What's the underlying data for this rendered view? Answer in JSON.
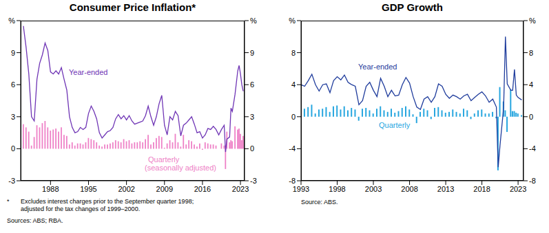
{
  "chart_data": [
    {
      "type": "combo",
      "title": "Consumer Price Inflation*",
      "footnote": {
        "mark": "*",
        "lines": [
          "Excludes interest charges prior to the September quarter 1998;",
          "adjusted for the tax changes of 1999–2000."
        ]
      },
      "source": "Sources: ABS; RBA.",
      "annotations": [
        "(seasonally adjusted)"
      ],
      "xlim": [
        1982.5,
        2023.75
      ],
      "xticks": [
        1988,
        1995,
        2002,
        2009,
        2016,
        2023
      ],
      "ylim": [
        -3,
        12
      ],
      "yticks": [
        -3,
        0,
        3,
        6,
        9,
        {
          "value": 12,
          "label": "%"
        }
      ],
      "grid": false,
      "x": [
        1983.0,
        1983.5,
        1984.0,
        1984.5,
        1985.0,
        1985.5,
        1986.0,
        1986.5,
        1987.0,
        1987.5,
        1988.0,
        1988.5,
        1989.0,
        1989.5,
        1990.0,
        1990.5,
        1991.0,
        1991.5,
        1992.0,
        1992.5,
        1993.0,
        1993.5,
        1994.0,
        1994.5,
        1995.0,
        1995.5,
        1996.0,
        1996.5,
        1997.0,
        1997.5,
        1998.0,
        1998.5,
        1999.0,
        1999.5,
        2000.0,
        2000.5,
        2001.0,
        2001.5,
        2002.0,
        2002.5,
        2003.0,
        2003.5,
        2004.0,
        2004.5,
        2005.0,
        2005.5,
        2006.0,
        2006.5,
        2007.0,
        2007.5,
        2008.0,
        2008.5,
        2009.0,
        2009.5,
        2010.0,
        2010.5,
        2011.0,
        2011.5,
        2012.0,
        2012.5,
        2013.0,
        2013.5,
        2014.0,
        2014.5,
        2015.0,
        2015.5,
        2016.0,
        2016.5,
        2017.0,
        2017.5,
        2018.0,
        2018.5,
        2019.0,
        2019.5,
        2020.0,
        2020.25,
        2020.5,
        2021.0,
        2021.25,
        2021.5,
        2022.0,
        2022.5,
        2022.75,
        2023.0,
        2023.25,
        2023.5
      ],
      "series": [
        {
          "name": "Quarterly",
          "type": "bar",
          "color": "#ee7fc6",
          "values": [
            2.3,
            2.0,
            1.6,
            0.3,
            1.1,
            2.2,
            2.0,
            2.4,
            2.6,
            2.0,
            1.7,
            1.8,
            1.9,
            1.6,
            2.0,
            1.3,
            1.2,
            0.4,
            0.6,
            0.3,
            0.5,
            0.5,
            0.4,
            0.6,
            1.0,
            0.9,
            0.8,
            0.6,
            0.3,
            0.2,
            0.4,
            0.4,
            0.5,
            0.6,
            0.8,
            0.7,
            0.6,
            0.9,
            0.7,
            0.8,
            0.5,
            0.6,
            0.6,
            0.7,
            0.6,
            0.9,
            1.3,
            0.4,
            0.6,
            1.0,
            1.2,
            1.1,
            0.1,
            0.5,
            0.8,
            0.6,
            1.4,
            0.6,
            0.2,
            1.3,
            0.4,
            0.8,
            0.7,
            0.4,
            0.2,
            0.5,
            -0.1,
            0.6,
            0.5,
            0.4,
            0.4,
            0.3,
            0.0,
            0.5,
            0.3,
            -1.9,
            1.6,
            0.6,
            0.8,
            0.7,
            2.1,
            1.8,
            1.9,
            1.4,
            0.8,
            1.2
          ]
        },
        {
          "name": "Year-ended",
          "type": "line",
          "color": "#6f35b5",
          "values": [
            11.5,
            9.5,
            7.0,
            3.0,
            2.6,
            6.5,
            8.0,
            8.8,
            9.9,
            9.2,
            7.2,
            7.0,
            7.3,
            7.0,
            7.6,
            6.5,
            5.5,
            3.0,
            2.0,
            1.5,
            1.6,
            2.0,
            1.8,
            2.0,
            3.3,
            4.0,
            3.5,
            2.8,
            1.5,
            1.0,
            1.3,
            1.6,
            1.7,
            2.0,
            2.8,
            3.2,
            2.8,
            3.1,
            2.7,
            3.1,
            2.6,
            2.3,
            2.4,
            2.5,
            2.6,
            3.1,
            4.0,
            3.0,
            2.2,
            3.0,
            4.2,
            5.0,
            2.2,
            1.3,
            3.0,
            2.7,
            3.5,
            3.1,
            1.2,
            2.2,
            2.4,
            2.7,
            3.0,
            2.3,
            1.5,
            1.6,
            1.0,
            1.3,
            1.9,
            1.8,
            2.1,
            1.8,
            1.3,
            1.8,
            2.2,
            -0.3,
            0.9,
            1.1,
            3.8,
            3.5,
            5.1,
            7.3,
            7.8,
            7.0,
            6.0,
            5.4
          ]
        }
      ]
    },
    {
      "type": "combo",
      "title": "GDP Growth",
      "source": "Source: ABS.",
      "xlim": [
        1993,
        2023.75
      ],
      "xticks": [
        1993,
        1998,
        2003,
        2008,
        2013,
        2018,
        2023
      ],
      "ylim": [
        -8,
        12
      ],
      "yticks": [
        -8,
        -4,
        0,
        4,
        8,
        {
          "value": 12,
          "label": "%"
        }
      ],
      "grid": false,
      "x": [
        1993.0,
        1993.5,
        1994.0,
        1994.5,
        1995.0,
        1995.5,
        1996.0,
        1996.5,
        1997.0,
        1997.5,
        1998.0,
        1998.5,
        1999.0,
        1999.5,
        2000.0,
        2000.5,
        2001.0,
        2001.5,
        2002.0,
        2002.5,
        2003.0,
        2003.5,
        2004.0,
        2004.5,
        2005.0,
        2005.5,
        2006.0,
        2006.5,
        2007.0,
        2007.5,
        2008.0,
        2008.5,
        2009.0,
        2009.5,
        2010.0,
        2010.5,
        2011.0,
        2011.5,
        2012.0,
        2012.5,
        2013.0,
        2013.5,
        2014.0,
        2014.5,
        2015.0,
        2015.5,
        2016.0,
        2016.5,
        2017.0,
        2017.5,
        2018.0,
        2018.5,
        2019.0,
        2019.5,
        2020.0,
        2020.25,
        2020.5,
        2021.0,
        2021.25,
        2021.5,
        2022.0,
        2022.25,
        2022.5,
        2022.75,
        2023.0,
        2023.5
      ],
      "series": [
        {
          "name": "Quarterly",
          "type": "bar",
          "color": "#27a6df",
          "values": [
            0.8,
            1.0,
            1.2,
            1.5,
            0.4,
            0.9,
            1.0,
            1.2,
            0.6,
            1.3,
            1.4,
            0.9,
            1.3,
            0.8,
            1.1,
            0.9,
            -0.5,
            1.0,
            1.1,
            0.8,
            0.4,
            1.0,
            1.3,
            0.8,
            0.6,
            1.0,
            0.5,
            0.7,
            1.1,
            1.3,
            0.9,
            0.3,
            -0.8,
            0.6,
            1.0,
            0.8,
            -0.3,
            1.1,
            1.2,
            0.8,
            0.5,
            0.6,
            0.9,
            0.6,
            0.4,
            1.0,
            0.8,
            -0.3,
            0.4,
            0.8,
            0.9,
            0.4,
            0.4,
            0.6,
            -0.2,
            -6.7,
            3.7,
            1.9,
            0.8,
            -1.9,
            3.4,
            0.7,
            0.7,
            0.5,
            0.4,
            0.2
          ]
        },
        {
          "name": "Year-ended",
          "type": "line",
          "color": "#1f3c9c",
          "values": [
            4.0,
            3.8,
            4.5,
            5.3,
            4.0,
            3.2,
            4.0,
            4.1,
            3.0,
            4.5,
            5.0,
            4.6,
            5.2,
            4.3,
            4.0,
            3.8,
            1.5,
            2.0,
            3.8,
            4.3,
            3.3,
            2.5,
            4.8,
            3.8,
            2.5,
            3.3,
            2.6,
            2.7,
            4.0,
            4.9,
            4.2,
            2.5,
            1.2,
            0.9,
            2.2,
            2.5,
            1.8,
            2.5,
            4.1,
            3.8,
            2.8,
            2.3,
            2.7,
            2.5,
            2.2,
            2.6,
            2.8,
            2.0,
            2.4,
            2.8,
            3.1,
            2.6,
            1.8,
            2.2,
            1.2,
            -6.3,
            -3.6,
            1.1,
            10.0,
            4.1,
            3.3,
            3.3,
            5.9,
            2.7,
            2.4,
            2.1
          ]
        }
      ]
    }
  ]
}
